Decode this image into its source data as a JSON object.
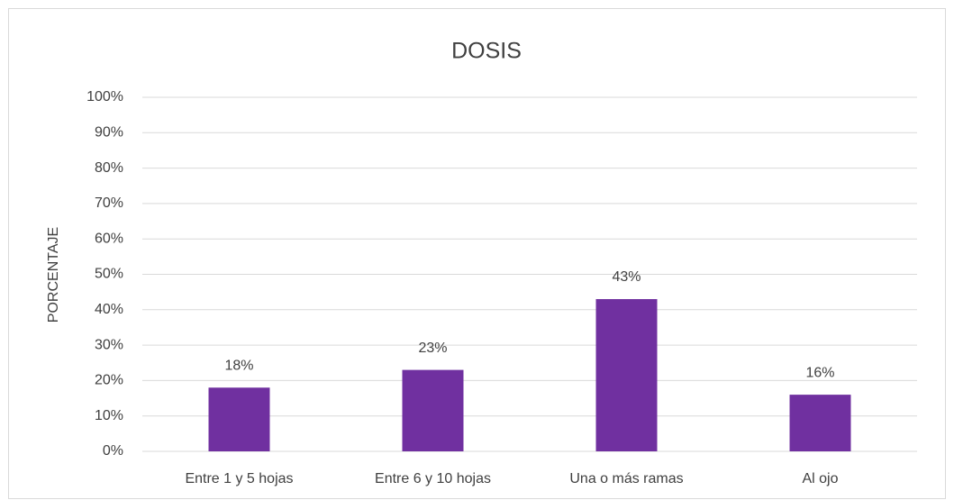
{
  "chart_data": {
    "type": "bar",
    "title": "DOSIS",
    "y_label": "PORCENTAJE",
    "categories": [
      "Entre 1 y 5 hojas",
      "Entre 6 y 10 hojas",
      "Una o más ramas",
      "Al ojo"
    ],
    "values": [
      18,
      23,
      43,
      16
    ],
    "value_labels": [
      "18%",
      "23%",
      "43%",
      "16%"
    ],
    "color": "#7030a0",
    "ylim": [
      0,
      100
    ],
    "yticks": [
      {
        "value": 0,
        "label": "0%"
      },
      {
        "value": 10,
        "label": "10%"
      },
      {
        "value": 20,
        "label": "20%"
      },
      {
        "value": 30,
        "label": "30%"
      },
      {
        "value": 40,
        "label": "40%"
      },
      {
        "value": 50,
        "label": "50%"
      },
      {
        "value": 60,
        "label": "60%"
      },
      {
        "value": 70,
        "label": "70%"
      },
      {
        "value": 80,
        "label": "80%"
      },
      {
        "value": 90,
        "label": "90%"
      },
      {
        "value": 100,
        "label": "100%"
      }
    ],
    "grid": true
  }
}
